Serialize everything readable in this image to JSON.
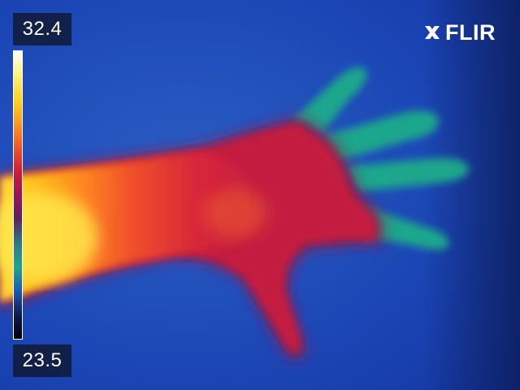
{
  "scale": {
    "max_label": "32.4",
    "min_label": "23.5",
    "palette": [
      "#ffffff",
      "#fff47a",
      "#ffd21a",
      "#ff9a1e",
      "#f45a24",
      "#d2193a",
      "#9b1453",
      "#602060",
      "#2f7a86",
      "#1fa68c",
      "#1a5fb4",
      "#0b1a52",
      "#000000"
    ]
  },
  "brand": {
    "name": "FLIR"
  },
  "colors": {
    "background": "#1a3fb0",
    "hand": "#c41e3f",
    "arm_hot": "#ffd21a",
    "fingertips": "#1fa68c"
  }
}
